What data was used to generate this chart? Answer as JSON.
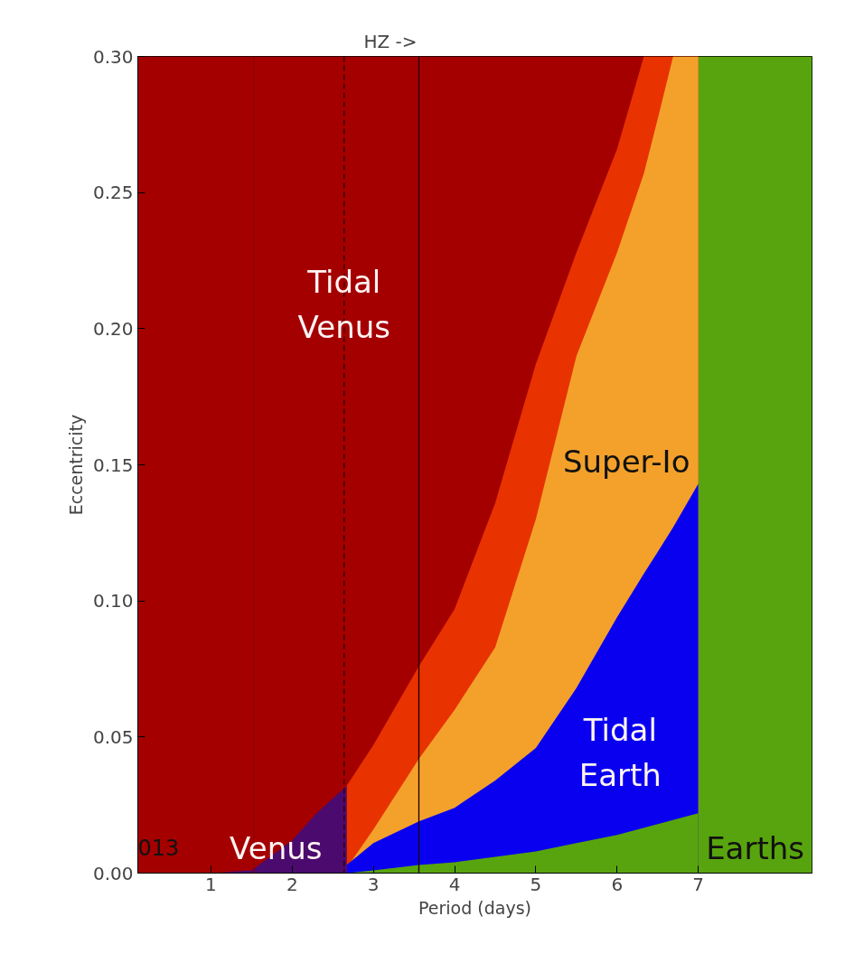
{
  "chart_data": {
    "type": "area",
    "title": "HZ ->",
    "xlabel": "Period (days)",
    "ylabel": "Eccentricity",
    "series": [
      {
        "color": "#e83200",
        "x": [
          2.67,
          3,
          3.56,
          4,
          4.5,
          5,
          5.5,
          6,
          6.33,
          7
        ],
        "values": [
          0.032,
          0.047,
          0.076,
          0.097,
          0.136,
          0.187,
          0.228,
          0.266,
          0.3,
          0.3
        ]
      },
      {
        "name": "Super-Io",
        "color": "#f3a12b",
        "x": [
          2.72,
          3,
          3.56,
          4,
          4.5,
          5,
          5.5,
          6,
          6.33,
          6.5,
          6.69,
          7
        ],
        "values": [
          0.004,
          0.016,
          0.042,
          0.06,
          0.083,
          0.13,
          0.19,
          0.228,
          0.257,
          0.277,
          0.3,
          0.3
        ]
      },
      {
        "name": "Tidal\nEarth",
        "color": "#0a00f0",
        "x": [
          2.67,
          3,
          3.56,
          4,
          4.5,
          5,
          5.5,
          6,
          6.33,
          6.5,
          6.69,
          7
        ],
        "values": [
          0.003,
          0.011,
          0.019,
          0.024,
          0.034,
          0.046,
          0.068,
          0.094,
          0.11,
          0.118,
          0.127,
          0.143
        ]
      },
      {
        "color": "#58a40e",
        "x": [
          2.67,
          3,
          3.56,
          4,
          4.5,
          5,
          5.5,
          6,
          6.5,
          7
        ],
        "values": [
          0,
          0.001,
          0.003,
          0.004,
          0.006,
          0.008,
          0.011,
          0.014,
          0.018,
          0.022
        ]
      },
      {
        "color": "#4b0a6e",
        "x": [
          0.1,
          1.0,
          1.5,
          2.0,
          2.3,
          2.67
        ],
        "values": [
          0,
          0,
          0.001,
          0.012,
          0.022,
          0.032
        ]
      }
    ],
    "xlim": [
      0.1,
      8.4
    ],
    "ylim": [
      0,
      0.3
    ],
    "xticks": [
      1,
      2,
      3,
      4,
      5,
      6,
      7
    ],
    "yticks": [
      {
        "value": 0,
        "label": "0.00"
      },
      {
        "value": 0.05,
        "label": "0.05"
      },
      {
        "value": 0.1,
        "label": "0.10"
      },
      {
        "value": 0.15,
        "label": "0.15"
      },
      {
        "value": 0.2,
        "label": "0.20"
      },
      {
        "value": 0.25,
        "label": "0.25"
      },
      {
        "value": 0.3,
        "label": "0.30"
      }
    ],
    "bands": [
      {
        "axis": "x",
        "from": 0.1,
        "to": 7,
        "color": "#a50000"
      },
      {
        "axis": "x",
        "from": 7,
        "to": 8.4,
        "color": "#58a40e",
        "label": "Earths"
      }
    ],
    "ref_lines": [
      {
        "axis": "x",
        "value": 1.53,
        "color": "#8c0000",
        "line_style": "solid"
      },
      {
        "axis": "x",
        "value": 2.64,
        "color": "#2a0000",
        "line_style": "dashed"
      },
      {
        "axis": "x",
        "value": 3.56,
        "color": "#1a0000",
        "line_style": "solid"
      }
    ],
    "annotations": [
      {
        "text": "Tidal\nVenus",
        "x": 2.64,
        "y": 0.209
      },
      {
        "text": "Venus",
        "x": 1.8,
        "y": 0.009
      },
      "013"
    ],
    "grid": false
  }
}
